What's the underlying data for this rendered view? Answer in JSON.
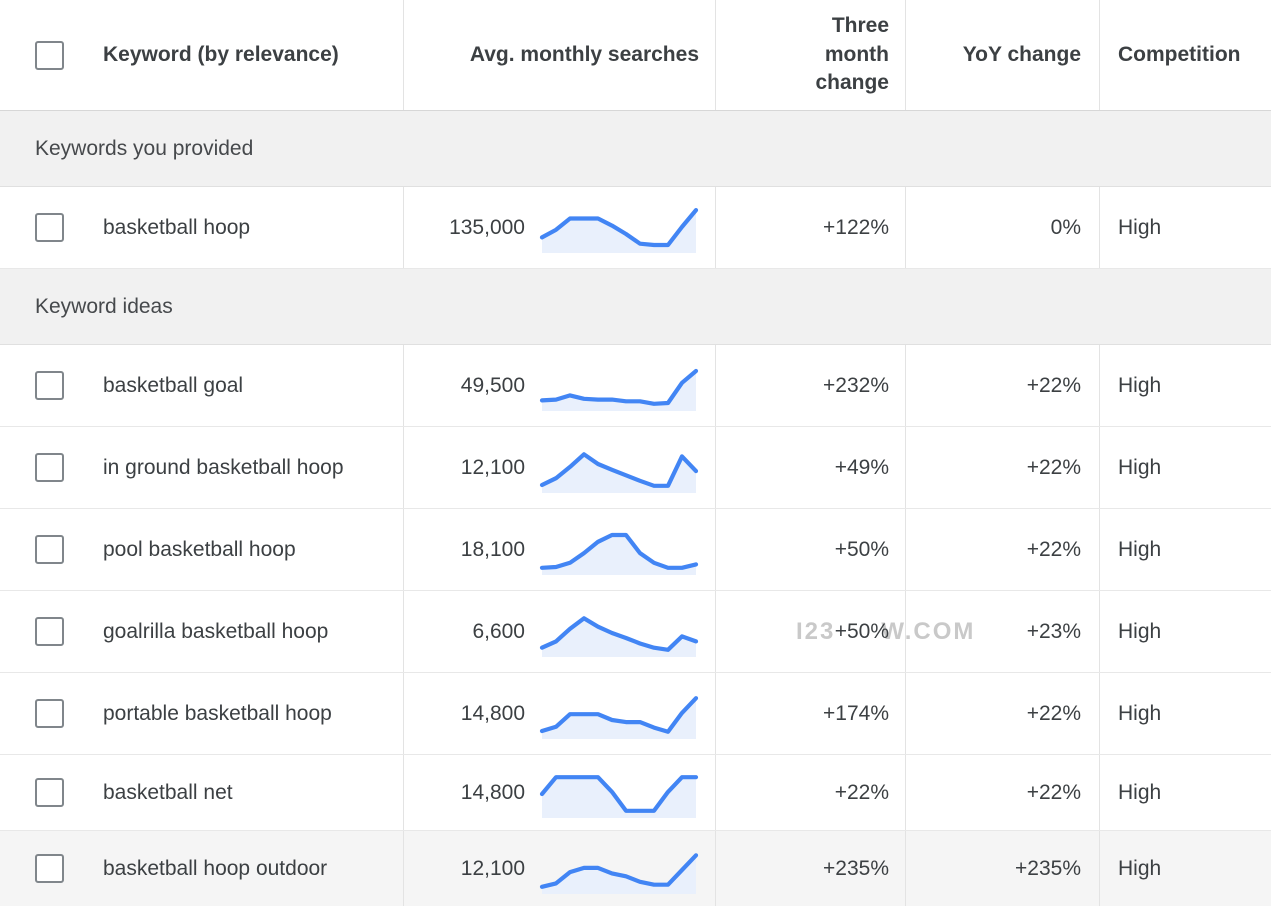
{
  "header": {
    "columns": [
      {
        "id": "keyword",
        "label": "Keyword (by relevance)"
      },
      {
        "id": "avg_monthly_searches",
        "label": "Avg. monthly searches"
      },
      {
        "id": "three_month_change",
        "label": "Three month change"
      },
      {
        "id": "yoy_change",
        "label": "YoY change"
      },
      {
        "id": "competition",
        "label": "Competition"
      }
    ]
  },
  "sections": [
    {
      "title": "Keywords you provided",
      "rows": [
        {
          "keyword": "basketball hoop",
          "avg_monthly_searches": "135,000",
          "three_month_change": "+122%",
          "yoy_change": "0%",
          "competition": "High",
          "sparkline": [
            0.3,
            0.48,
            0.75,
            0.75,
            0.75,
            0.58,
            0.38,
            0.15,
            0.12,
            0.12,
            0.55,
            0.95
          ]
        }
      ]
    },
    {
      "title": "Keyword ideas",
      "rows": [
        {
          "keyword": "basketball goal",
          "avg_monthly_searches": "49,500",
          "three_month_change": "+232%",
          "yoy_change": "+22%",
          "competition": "High",
          "sparkline": [
            0.18,
            0.2,
            0.3,
            0.22,
            0.2,
            0.2,
            0.16,
            0.16,
            0.1,
            0.12,
            0.6,
            0.88
          ]
        },
        {
          "keyword": "in ground basketball hoop",
          "avg_monthly_searches": "12,100",
          "three_month_change": "+49%",
          "yoy_change": "+22%",
          "competition": "High",
          "sparkline": [
            0.12,
            0.28,
            0.55,
            0.85,
            0.62,
            0.48,
            0.35,
            0.22,
            0.1,
            0.1,
            0.8,
            0.45
          ]
        },
        {
          "keyword": "pool basketball hoop",
          "avg_monthly_searches": "18,100",
          "three_month_change": "+50%",
          "yoy_change": "+22%",
          "competition": "High",
          "sparkline": [
            0.1,
            0.12,
            0.22,
            0.45,
            0.72,
            0.88,
            0.88,
            0.45,
            0.22,
            0.1,
            0.1,
            0.18
          ]
        },
        {
          "keyword": "goalrilla basketball hoop",
          "avg_monthly_searches": "6,600",
          "three_month_change": "+50%",
          "yoy_change": "+23%",
          "competition": "High",
          "watermark": true,
          "sparkline": [
            0.15,
            0.3,
            0.6,
            0.85,
            0.65,
            0.5,
            0.38,
            0.25,
            0.15,
            0.1,
            0.42,
            0.3
          ]
        },
        {
          "keyword": "portable basketball hoop",
          "avg_monthly_searches": "14,800",
          "three_month_change": "+174%",
          "yoy_change": "+22%",
          "competition": "High",
          "sparkline": [
            0.12,
            0.22,
            0.52,
            0.52,
            0.52,
            0.38,
            0.33,
            0.33,
            0.2,
            0.1,
            0.55,
            0.9
          ]
        },
        {
          "keyword": "basketball net",
          "avg_monthly_searches": "14,800",
          "three_month_change": "+22%",
          "yoy_change": "+22%",
          "competition": "High",
          "sparkline": [
            0.5,
            0.9,
            0.9,
            0.9,
            0.9,
            0.55,
            0.1,
            0.1,
            0.1,
            0.55,
            0.9,
            0.9
          ]
        },
        {
          "keyword": "basketball hoop outdoor",
          "avg_monthly_searches": "12,100",
          "three_month_change": "+235%",
          "yoy_change": "+235%",
          "competition": "High",
          "highlighted": true,
          "sparkline": [
            0.1,
            0.18,
            0.45,
            0.55,
            0.55,
            0.42,
            0.35,
            0.22,
            0.15,
            0.15,
            0.5,
            0.85
          ]
        }
      ]
    }
  ],
  "watermark": {
    "prefix": "I23",
    "suffix": "W.COM"
  },
  "colors": {
    "spark_line": "#4285f4",
    "spark_fill": "#e9f0fc",
    "row_highlight": "#f5f5f5",
    "section_bg": "#f1f1f1",
    "text": "#3c4043",
    "watermark": "#bcbcbc"
  }
}
